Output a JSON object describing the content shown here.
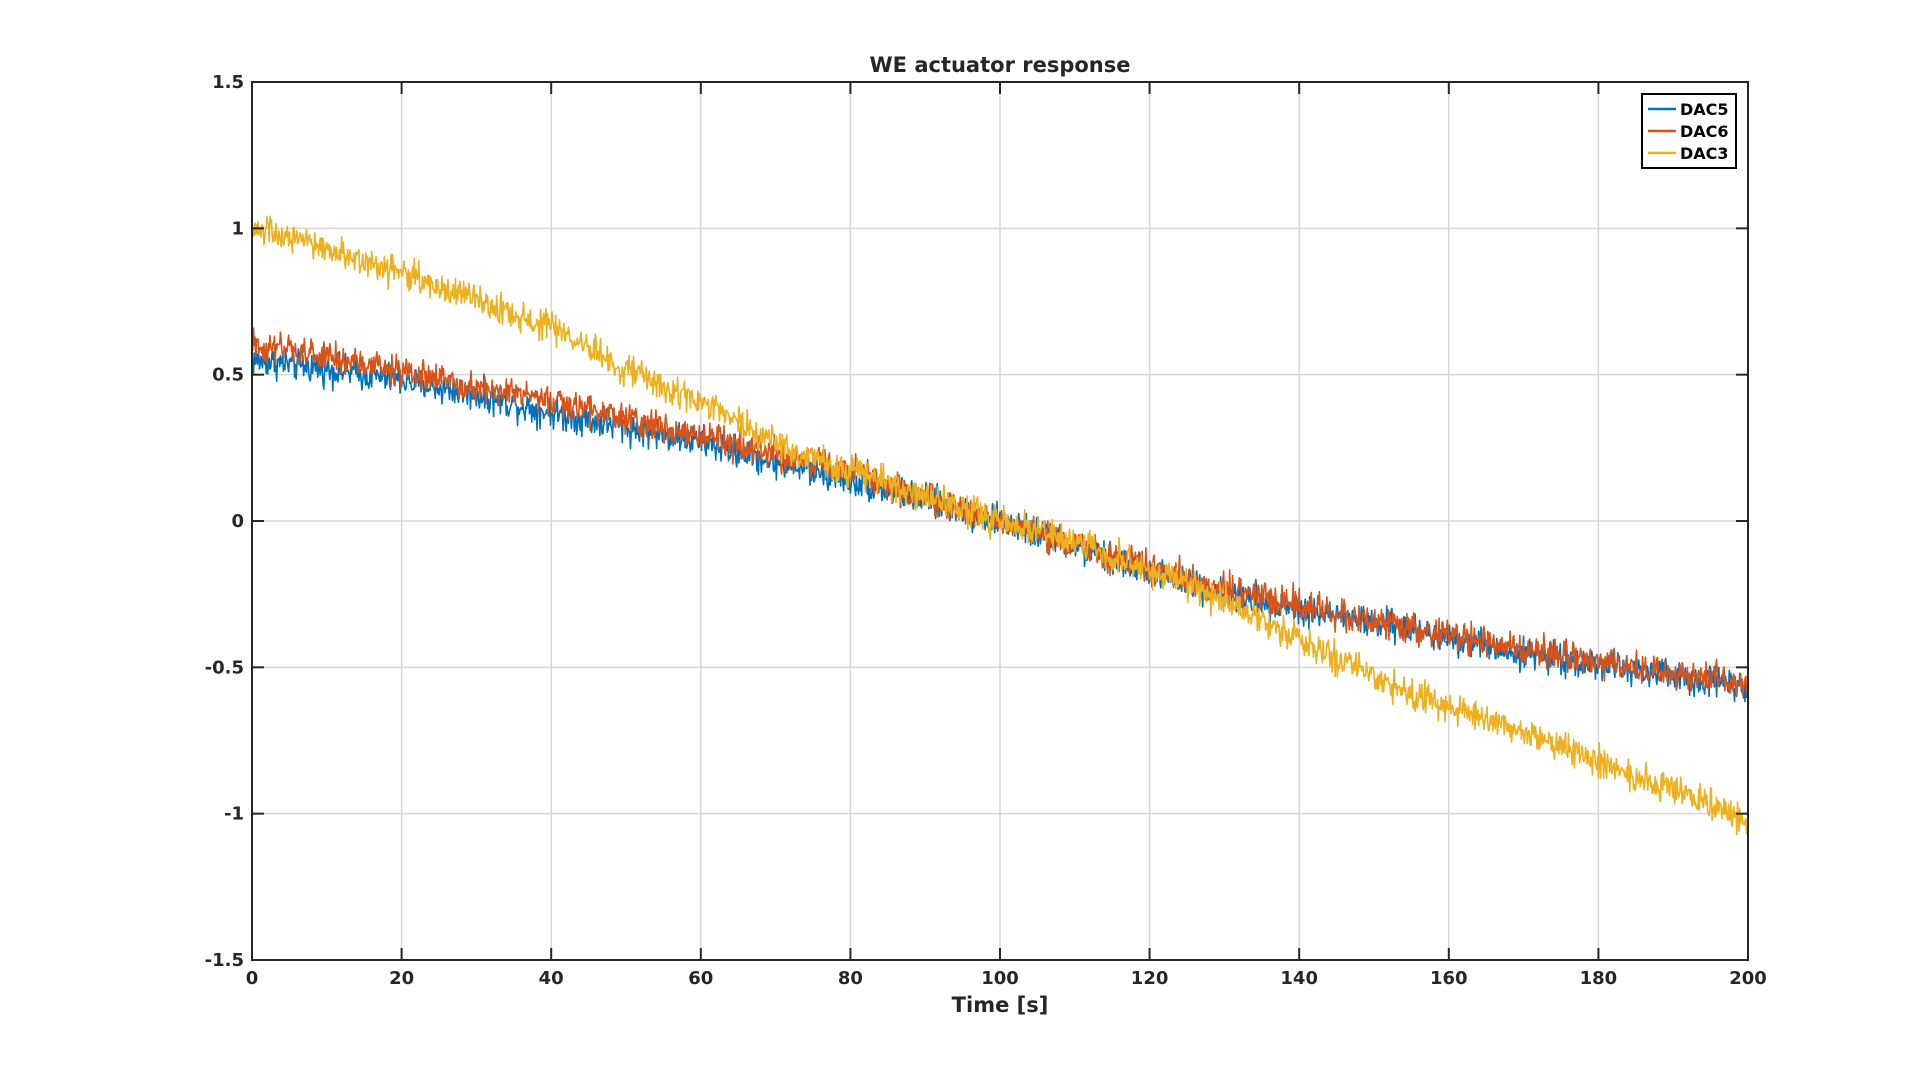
{
  "chart_data": {
    "type": "line",
    "title": "WE actuator response",
    "xlabel": "Time [s]",
    "ylabel": "",
    "xlim": [
      0,
      200
    ],
    "ylim": [
      -1.5,
      1.5
    ],
    "x_ticks": [
      "0",
      "20",
      "40",
      "60",
      "80",
      "100",
      "120",
      "140",
      "160",
      "180",
      "200"
    ],
    "y_ticks": [
      "1.5",
      "1",
      "0.5",
      "0",
      "-0.5",
      "-1",
      "-1.5"
    ],
    "grid": true,
    "legend_position": "top-right",
    "series": [
      {
        "name": "DAC5",
        "color": "#0072BD",
        "x": [
          0,
          10,
          20,
          30,
          40,
          50,
          60,
          70,
          80,
          90,
          100,
          110,
          120,
          130,
          140,
          150,
          160,
          170,
          180,
          190,
          200
        ],
        "values": [
          0.55,
          0.52,
          0.48,
          0.43,
          0.37,
          0.32,
          0.27,
          0.2,
          0.14,
          0.07,
          0.0,
          -0.09,
          -0.17,
          -0.25,
          -0.3,
          -0.35,
          -0.4,
          -0.45,
          -0.49,
          -0.53,
          -0.56
        ],
        "noise": 0.05
      },
      {
        "name": "DAC6",
        "color": "#D95319",
        "x": [
          0,
          10,
          20,
          30,
          40,
          50,
          60,
          70,
          80,
          90,
          100,
          110,
          120,
          130,
          140,
          150,
          160,
          170,
          180,
          190,
          200
        ],
        "values": [
          0.6,
          0.56,
          0.51,
          0.46,
          0.41,
          0.35,
          0.29,
          0.23,
          0.17,
          0.08,
          0.0,
          -0.08,
          -0.16,
          -0.23,
          -0.29,
          -0.34,
          -0.39,
          -0.44,
          -0.48,
          -0.52,
          -0.56
        ],
        "noise": 0.05
      },
      {
        "name": "DAC3",
        "color": "#EDB120",
        "x": [
          0,
          10,
          20,
          30,
          40,
          50,
          60,
          70,
          80,
          90,
          100,
          110,
          120,
          130,
          140,
          150,
          160,
          170,
          180,
          190,
          200
        ],
        "values": [
          1.0,
          0.93,
          0.85,
          0.75,
          0.66,
          0.52,
          0.4,
          0.27,
          0.17,
          0.08,
          0.0,
          -0.07,
          -0.17,
          -0.27,
          -0.41,
          -0.54,
          -0.64,
          -0.72,
          -0.82,
          -0.92,
          -1.02
        ],
        "noise": 0.05
      }
    ]
  }
}
